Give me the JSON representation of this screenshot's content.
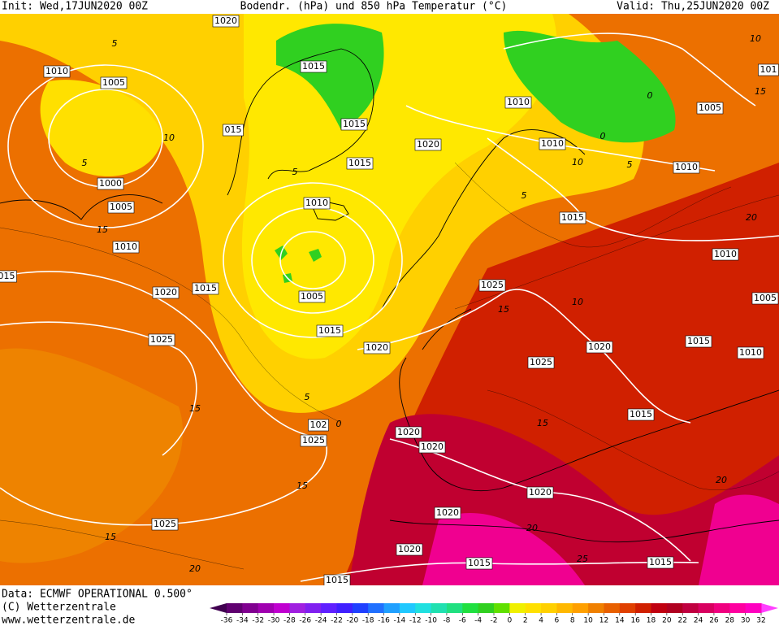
{
  "header": {
    "init": "Init: Wed,17JUN2020 00Z",
    "title": "Bodendr. (hPa) und 850 hPa Temperatur (°C)",
    "valid": "Valid: Thu,25JUN2020 00Z"
  },
  "footer": {
    "data": "Data: ECMWF OPERATIONAL 0.500°",
    "copyright": "(C) Wetterzentrale",
    "url": "www.wetterzentrale.de"
  },
  "isobar_labels": [
    "1020",
    "1010",
    "1005",
    "1015",
    "1010",
    "1005",
    "015",
    "1015",
    "1020",
    "1010",
    "1015",
    "1010",
    "1000",
    "1010",
    "1005",
    "1015",
    "1010",
    "1010",
    "015",
    "1025",
    "1015",
    "1020",
    "1005",
    "1005",
    "1015",
    "1025",
    "1015",
    "1020",
    "1020",
    "1010",
    "1025",
    "1015",
    "102",
    "1025",
    "1020",
    "1020",
    "1020",
    "1020",
    "1025",
    "1020",
    "1015",
    "1015",
    "1015",
    "101"
  ],
  "temperature_labels": [
    "10",
    "15",
    "0",
    "0",
    "10",
    "5",
    "5",
    "20",
    "10",
    "15",
    "15",
    "10",
    "5",
    "5",
    "5",
    "15",
    "5",
    "0",
    "15",
    "15",
    "20",
    "20",
    "25",
    "20",
    "15"
  ],
  "colorbar": {
    "ticks": [
      -36,
      -34,
      -32,
      -30,
      -28,
      -26,
      -24,
      -22,
      -20,
      -18,
      -16,
      -14,
      -12,
      -10,
      -8,
      -6,
      -4,
      -2,
      0,
      2,
      4,
      6,
      8,
      10,
      12,
      14,
      16,
      18,
      20,
      22,
      24,
      26,
      28,
      30,
      32
    ],
    "colors": [
      "#600070",
      "#800090",
      "#a000b0",
      "#c000d0",
      "#a020e0",
      "#8020f0",
      "#6020ff",
      "#4020ff",
      "#2040ff",
      "#2070ff",
      "#20a0ff",
      "#20c8ff",
      "#20e0e0",
      "#20e0b0",
      "#20e080",
      "#20e040",
      "#30d020",
      "#60e000",
      "#f0f000",
      "#ffe000",
      "#ffd000",
      "#ffb800",
      "#ffa000",
      "#f08000",
      "#e86000",
      "#e04000",
      "#d02000",
      "#c00010",
      "#b00020",
      "#c00040",
      "#d80060",
      "#f00080",
      "#ff00a0",
      "#ff00c0"
    ],
    "under_color": "#400050",
    "over_color": "#ff40ff"
  }
}
